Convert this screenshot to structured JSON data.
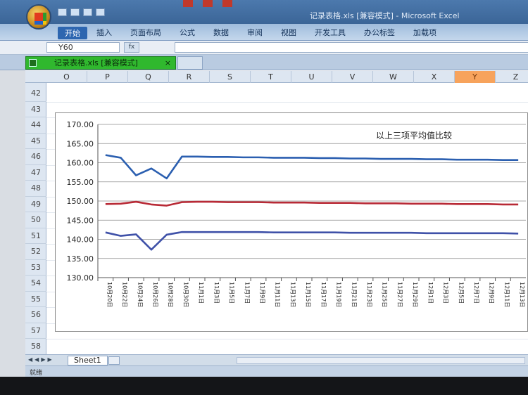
{
  "window": {
    "title": "记录表格.xls  [兼容模式] - Microsoft Excel"
  },
  "ribbon": {
    "tabs": [
      "开始",
      "插入",
      "页面布局",
      "公式",
      "数据",
      "审阅",
      "视图",
      "开发工具",
      "办公标签",
      "加载项"
    ]
  },
  "formula_bar": {
    "name_box": "Y60",
    "fx_label": "fx",
    "formula": ""
  },
  "document_tab": {
    "label": "记录表格.xls  [兼容模式]",
    "close": "×"
  },
  "sheet": {
    "columns": [
      "O",
      "P",
      "Q",
      "R",
      "S",
      "T",
      "U",
      "V",
      "W",
      "X",
      "Y",
      "Z"
    ],
    "selected_column": "Y",
    "rows": [
      "42",
      "43",
      "44",
      "45",
      "46",
      "47",
      "48",
      "49",
      "50",
      "51",
      "52",
      "53",
      "54",
      "55",
      "56",
      "57",
      "58"
    ]
  },
  "chart_data": {
    "type": "line",
    "title": "以上三项平均值比较",
    "xlabel": "",
    "ylabel": "",
    "ylim": [
      130,
      170
    ],
    "yticks": [
      "170.00",
      "165.00",
      "160.00",
      "155.00",
      "150.00",
      "145.00",
      "140.00",
      "135.00",
      "130.00"
    ],
    "categories": [
      "10月20日",
      "10月22日",
      "10月24日",
      "10月26日",
      "10月28日",
      "10月30日",
      "11月1日",
      "11月3日",
      "11月5日",
      "11月7日",
      "11月9日",
      "11月11日",
      "11月13日",
      "11月15日",
      "11月17日",
      "11月19日",
      "11月21日",
      "11月23日",
      "11月25日",
      "11月27日",
      "11月29日",
      "12月1日",
      "12月3日",
      "12月5日",
      "12月7日",
      "12月9日",
      "12月11日",
      "12月13日"
    ],
    "grid": true,
    "series": [
      {
        "color": "#2b5fb0",
        "values": [
          162.0,
          161.3,
          156.7,
          158.5,
          155.9,
          161.6,
          161.6,
          161.5,
          161.5,
          161.4,
          161.4,
          161.3,
          161.3,
          161.3,
          161.2,
          161.2,
          161.1,
          161.1,
          161.0,
          161.0,
          161.0,
          160.9,
          160.9,
          160.8,
          160.8,
          160.8,
          160.7,
          160.7
        ]
      },
      {
        "color": "#b82a36",
        "values": [
          149.2,
          149.3,
          149.8,
          149.1,
          148.8,
          149.7,
          149.8,
          149.8,
          149.7,
          149.7,
          149.7,
          149.6,
          149.6,
          149.6,
          149.5,
          149.5,
          149.5,
          149.4,
          149.4,
          149.4,
          149.3,
          149.3,
          149.3,
          149.2,
          149.2,
          149.2,
          149.1,
          149.1
        ]
      },
      {
        "color": "#3f51a8",
        "values": [
          141.8,
          140.9,
          141.3,
          137.3,
          141.2,
          141.9,
          141.9,
          141.9,
          141.9,
          141.9,
          141.9,
          141.8,
          141.8,
          141.8,
          141.8,
          141.8,
          141.7,
          141.7,
          141.7,
          141.7,
          141.7,
          141.6,
          141.6,
          141.6,
          141.6,
          141.6,
          141.6,
          141.5
        ]
      }
    ]
  },
  "sheet_tabs": {
    "active": "Sheet1"
  },
  "status_bar": {
    "text": "就绪"
  }
}
